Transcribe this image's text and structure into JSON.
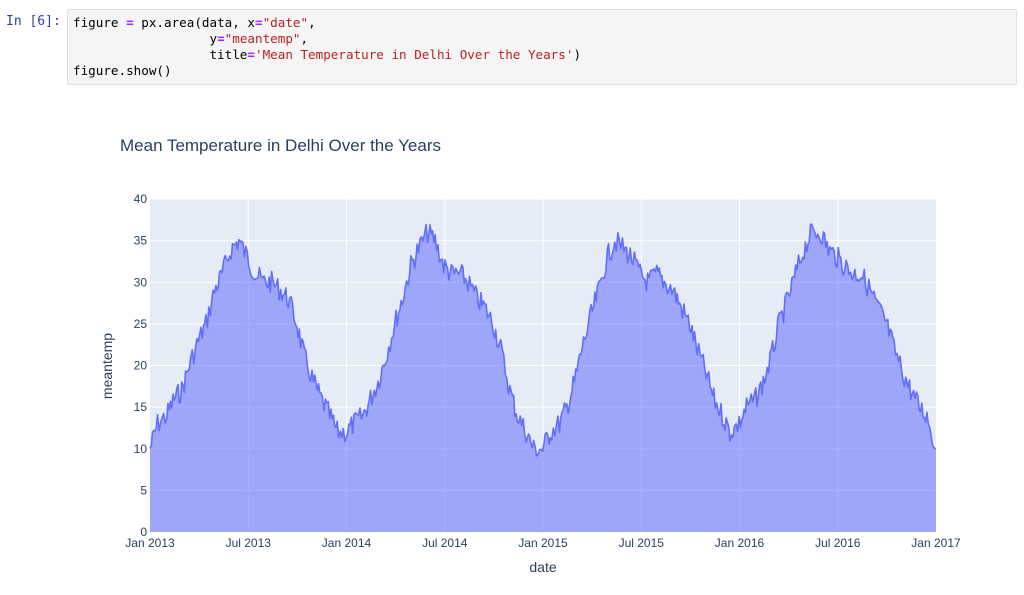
{
  "cell": {
    "prompt": "In [6]:",
    "code_lines": [
      [
        {
          "t": "figure "
        },
        {
          "t": "=",
          "c": "op"
        },
        {
          "t": " px.area(data, x"
        },
        {
          "t": "=",
          "c": "op"
        },
        {
          "t": "\"date\"",
          "c": "str"
        },
        {
          "t": ","
        }
      ],
      [
        {
          "t": "                  y"
        },
        {
          "t": "=",
          "c": "op"
        },
        {
          "t": "\"meantemp\"",
          "c": "str"
        },
        {
          "t": ","
        }
      ],
      [
        {
          "t": "                  title"
        },
        {
          "t": "=",
          "c": "op"
        },
        {
          "t": "'Mean Temperature in Delhi Over the Years'",
          "c": "str"
        },
        {
          "t": ")"
        }
      ],
      [
        {
          "t": "figure.show()"
        }
      ]
    ]
  },
  "colors": {
    "line": "#636efa",
    "fill": "rgba(99,110,250,0.55)",
    "plot_bg": "#e5ecf6",
    "grid": "#ffffff",
    "title": "#2a3f5f",
    "prompt": "#303f9f",
    "code_op": "#aa22ff",
    "code_str": "#ba2121"
  },
  "chart_data": {
    "type": "area",
    "title": "Mean Temperature in Delhi Over the Years",
    "xlabel": "date",
    "ylabel": "meantemp",
    "xlim": [
      "2013-01-01",
      "2017-01-01"
    ],
    "ylim": [
      0,
      40
    ],
    "x_ticks": [
      "Jan 2013",
      "Jul 2013",
      "Jan 2014",
      "Jul 2014",
      "Jan 2015",
      "Jul 2015",
      "Jan 2016",
      "Jul 2016",
      "Jan 2017"
    ],
    "y_ticks": [
      "0",
      "5",
      "10",
      "15",
      "20",
      "25",
      "30",
      "35",
      "40"
    ],
    "grid": true,
    "series": [
      {
        "x": [
          "2013-01-01",
          "2013-01-15",
          "2013-02-01",
          "2013-02-15",
          "2013-03-01",
          "2013-03-15",
          "2013-04-01",
          "2013-04-15",
          "2013-05-01",
          "2013-05-15",
          "2013-06-01",
          "2013-06-15",
          "2013-07-01",
          "2013-07-15",
          "2013-08-01",
          "2013-08-15",
          "2013-09-01",
          "2013-09-15",
          "2013-10-01",
          "2013-10-15",
          "2013-11-01",
          "2013-11-15",
          "2013-12-01",
          "2013-12-15",
          "2014-01-01",
          "2014-01-15",
          "2014-02-01",
          "2014-02-15",
          "2014-03-01",
          "2014-03-15",
          "2014-04-01",
          "2014-04-15",
          "2014-05-01",
          "2014-05-15",
          "2014-06-01",
          "2014-06-15",
          "2014-07-01",
          "2014-07-15",
          "2014-08-01",
          "2014-08-15",
          "2014-09-01",
          "2014-09-15",
          "2014-10-01",
          "2014-10-15",
          "2014-11-01",
          "2014-11-15",
          "2014-12-01",
          "2014-12-15",
          "2015-01-01",
          "2015-01-15",
          "2015-02-01",
          "2015-02-15",
          "2015-03-01",
          "2015-03-15",
          "2015-04-01",
          "2015-04-15",
          "2015-05-01",
          "2015-05-15",
          "2015-06-01",
          "2015-06-15",
          "2015-07-01",
          "2015-07-15",
          "2015-08-01",
          "2015-08-15",
          "2015-09-01",
          "2015-09-15",
          "2015-10-01",
          "2015-10-15",
          "2015-11-01",
          "2015-11-15",
          "2015-12-01",
          "2015-12-15",
          "2016-01-01",
          "2016-01-15",
          "2016-02-01",
          "2016-02-15",
          "2016-03-01",
          "2016-03-15",
          "2016-04-01",
          "2016-04-15",
          "2016-05-01",
          "2016-05-15",
          "2016-06-01",
          "2016-06-15",
          "2016-07-01",
          "2016-07-15",
          "2016-08-01",
          "2016-08-15",
          "2016-09-01",
          "2016-09-15",
          "2016-10-01",
          "2016-10-15",
          "2016-11-01",
          "2016-11-15",
          "2016-12-01",
          "2016-12-15",
          "2017-01-01"
        ],
        "y": [
          10,
          13,
          14,
          16,
          17,
          20,
          23,
          25,
          29,
          31,
          34,
          35,
          33,
          31,
          30,
          30,
          29,
          28,
          25,
          21,
          18,
          16,
          14,
          12,
          12,
          13,
          14,
          16,
          18,
          21,
          25,
          28,
          32,
          34,
          36,
          35,
          32,
          31,
          31,
          30,
          28,
          27,
          25,
          22,
          17,
          14,
          12,
          10,
          10,
          12,
          13,
          15,
          18,
          22,
          26,
          29,
          33,
          35,
          34,
          33,
          31,
          30,
          31,
          30,
          29,
          27,
          25,
          22,
          19,
          16,
          14,
          12,
          13,
          15,
          16,
          18,
          21,
          25,
          28,
          31,
          34,
          36,
          36,
          34,
          33,
          32,
          31,
          31,
          29,
          27,
          25,
          22,
          19,
          17,
          15,
          14,
          10
        ]
      }
    ]
  }
}
